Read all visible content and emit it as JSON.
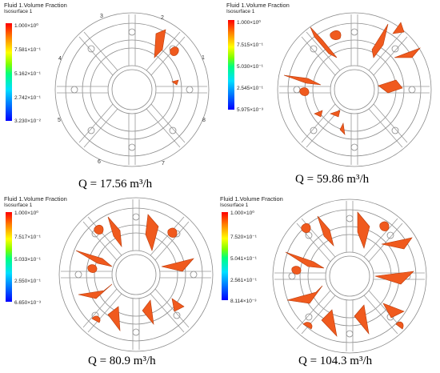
{
  "panels": [
    {
      "legend": {
        "title": "Fluid 1.Volume Fraction",
        "subtitle": "Isosurface 1",
        "ticks": [
          "1.000×10⁰",
          "7.581×10⁻¹",
          "5.162×10⁻¹",
          "2.742×10⁻¹",
          "3.230×10⁻²"
        ]
      },
      "caption": "Q = 17.56 m³/h",
      "blade_numbers": [
        "1",
        "2",
        "3",
        "4",
        "5",
        "6",
        "7",
        "8"
      ]
    },
    {
      "legend": {
        "title": "Fluid 1.Volume Fraction",
        "subtitle": "Isosurface 1",
        "ticks": [
          "1.000×10⁰",
          "7.515×10⁻¹",
          "5.030×10⁻¹",
          "2.545×10⁻¹",
          "5.975×10⁻³"
        ]
      },
      "caption": "Q = 59.86 m³/h"
    },
    {
      "legend": {
        "title": "Fluid 1.Volume Fraction",
        "subtitle": "Isosurface 1",
        "ticks": [
          "1.000×10⁰",
          "7.517×10⁻¹",
          "5.033×10⁻¹",
          "2.550×10⁻¹",
          "6.650×10⁻³"
        ]
      },
      "caption": "Q = 80.9 m³/h"
    },
    {
      "legend": {
        "title": "Fluid 1.Volume Fraction",
        "subtitle": "Isosurface 1",
        "ticks": [
          "1.000×10⁰",
          "7.520×10⁻¹",
          "5.041×10⁻¹",
          "2.561×10⁻¹",
          "8.114×10⁻³"
        ]
      },
      "caption": "Q = 104.3 m³/h"
    }
  ],
  "colors": {
    "isosurface": "#f05a1e",
    "isosurface_dark": "#b83a0a",
    "geometry": "#8a8a8a"
  }
}
